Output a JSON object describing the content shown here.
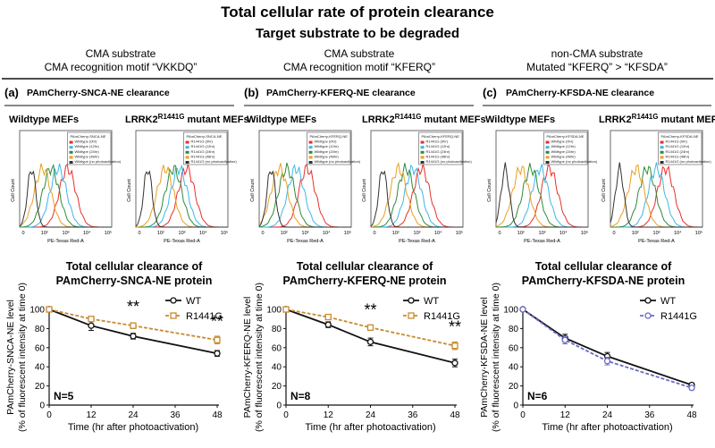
{
  "title": "Total cellular rate of protein clearance",
  "subtitle": "Target substrate to be degraded",
  "columns": [
    {
      "header_line1": "CMA substrate",
      "header_line2": "CMA recognition motif “VKKDQ”",
      "panel_letter": "(a)",
      "panel_title": "PAmCherry-SNCA-NE clearance",
      "wt_label": "Wildtype MEFs",
      "mut_label_prefix": "LRRK2",
      "mut_label_sup": "R1441G",
      "mut_label_suffix": " mutant MEFs"
    },
    {
      "header_line1": "CMA substrate",
      "header_line2": "CMA recognition motif “KFERQ”",
      "panel_letter": "(b)",
      "panel_title": "PAmCherry-KFERQ-NE clearance",
      "wt_label": "Wildtype MEFs",
      "mut_label_prefix": "LRRK2",
      "mut_label_sup": "R1441G",
      "mut_label_suffix": " mutant MEFs"
    },
    {
      "header_line1": "non-CMA substrate",
      "header_line2": "Mutated “KFERQ” > “KFSDA”",
      "panel_letter": "(c)",
      "panel_title": "PAmCherry-KFSDA-NE clearance",
      "wt_label": "Wildtype MEFs",
      "mut_label_prefix": "LRRK2",
      "mut_label_sup": "R1441G",
      "mut_label_suffix": " mutant MEFs"
    }
  ],
  "flow_axis": {
    "ylabel": "Cell Count",
    "xlabel": "PE-Texas Red-A",
    "ticks": [
      "0",
      "10²",
      "10³",
      "10⁴",
      "10⁵"
    ]
  },
  "flow_legends": {
    "snca_wt": [
      "PAmCherry-SNCA-NE",
      "Wildtype (0hr)",
      "Wildtype (12hr)",
      "Wildtype (24hr)",
      "Wildtype (48hr)",
      "Wildtype (no photoactivation)"
    ],
    "snca_mut": [
      "PAmCherry-SNCA-NE",
      "R1441G (0hr)",
      "R1441G (12hr)",
      "R1441G (24hr)",
      "R1441G (48hr)",
      "R1441G (no photoactivation)"
    ],
    "kferq_wt": [
      "PAmCherry-KFERQ-NE",
      "Wildtype (0hr)",
      "Wildtype (12hr)",
      "Wildtype (24hr)",
      "Wildtype (48hr)",
      "Wildtype (no photoactivation)"
    ],
    "kferq_mut": [
      "PAmCherry-KFERQ-NE",
      "R1441G (0hr)",
      "R1441G (12hr)",
      "R1441G (24hr)",
      "R1441G (48hr)",
      "R1441G (no photoactivation)"
    ],
    "kfsda_wt": [
      "PAmCherry-KFSDA-NE",
      "Wildtype (0hr)",
      "Wildtype (12hr)",
      "Wildtype (24hr)",
      "Wildtype (48hr)",
      "Wildtype (no photoactivation)"
    ],
    "kfsda_mut": [
      "PAmCherry-KFSDA-NE",
      "R1441G (0hr)",
      "R1441G (12hr)",
      "R1441G (24hr)",
      "R1441G (48hr)",
      "R1441G (no photoactivation)"
    ]
  },
  "flow_colors": [
    "#e8302b",
    "#3fb6e8",
    "#2e8b3a",
    "#e8a020",
    "#333333"
  ],
  "colors": {
    "wt": "#111111",
    "r1441g": "#c98a2e",
    "r1441g_c": "#6a6ac8"
  },
  "chart_data": [
    {
      "type": "line",
      "title_line1": "Total cellular clearance of",
      "title_line2": "PAmCherry-SNCA-NE protein",
      "ylabel_line1": "PAmCherry-SNCA-NE level",
      "ylabel_line2": "(% of fluorescent intensity at time 0)",
      "xlabel": "Time (hr after photoactivation)",
      "x": [
        0,
        12,
        24,
        48
      ],
      "xlim": [
        0,
        48
      ],
      "ylim": [
        0,
        100
      ],
      "xticks": [
        0,
        12,
        24,
        36,
        48
      ],
      "yticks": [
        0,
        20,
        40,
        60,
        80,
        100
      ],
      "series": [
        {
          "name": "WT",
          "values": [
            100,
            83,
            72,
            54
          ],
          "errors": [
            0,
            5,
            3,
            3
          ]
        },
        {
          "name": "R1441G",
          "values": [
            100,
            90,
            83,
            68
          ],
          "errors": [
            0,
            2,
            3,
            4
          ]
        }
      ],
      "annotations": [
        {
          "x": 24,
          "y": 97,
          "text": "**"
        },
        {
          "x": 48,
          "y": 82,
          "text": "**"
        }
      ],
      "n_label": "N=5"
    },
    {
      "type": "line",
      "title_line1": "Total cellular clearance of",
      "title_line2": "PAmCherry-KFERQ-NE protein",
      "ylabel_line1": "PAmCherry-KFERQ-NE level",
      "ylabel_line2": "(% of fluorescent intensity at time 0)",
      "xlabel": "Time (hr after photoactivation)",
      "x": [
        0,
        12,
        24,
        48
      ],
      "xlim": [
        0,
        48
      ],
      "ylim": [
        0,
        100
      ],
      "xticks": [
        0,
        12,
        24,
        36,
        48
      ],
      "yticks": [
        0,
        20,
        40,
        60,
        80,
        100
      ],
      "series": [
        {
          "name": "WT",
          "values": [
            100,
            84,
            66,
            44
          ],
          "errors": [
            0,
            3,
            4,
            4
          ]
        },
        {
          "name": "R1441G",
          "values": [
            100,
            92,
            81,
            62
          ],
          "errors": [
            0,
            2,
            2,
            4
          ]
        }
      ],
      "annotations": [
        {
          "x": 24,
          "y": 94,
          "text": "**"
        },
        {
          "x": 48,
          "y": 76,
          "text": "**"
        }
      ],
      "n_label": "N=8"
    },
    {
      "type": "line",
      "title_line1": "Total cellular clearance of",
      "title_line2": "PAmCherry-KFSDA-NE protein",
      "ylabel_line1": "PAmCherry-KFSDA-NE level",
      "ylabel_line2": "(% of fluorescent intensity at time 0)",
      "xlabel": "Time (hr after photoactivation)",
      "x": [
        0,
        12,
        24,
        48
      ],
      "xlim": [
        0,
        48
      ],
      "ylim": [
        0,
        100
      ],
      "xticks": [
        0,
        12,
        24,
        36,
        48
      ],
      "yticks": [
        0,
        20,
        40,
        60,
        80,
        100
      ],
      "series": [
        {
          "name": "WT",
          "values": [
            100,
            70,
            51,
            21
          ],
          "errors": [
            0,
            4,
            4,
            2
          ]
        },
        {
          "name": "R1441G",
          "values": [
            100,
            68,
            46,
            18
          ],
          "errors": [
            0,
            4,
            4,
            2
          ]
        }
      ],
      "annotations": [],
      "n_label": "N=6"
    }
  ]
}
